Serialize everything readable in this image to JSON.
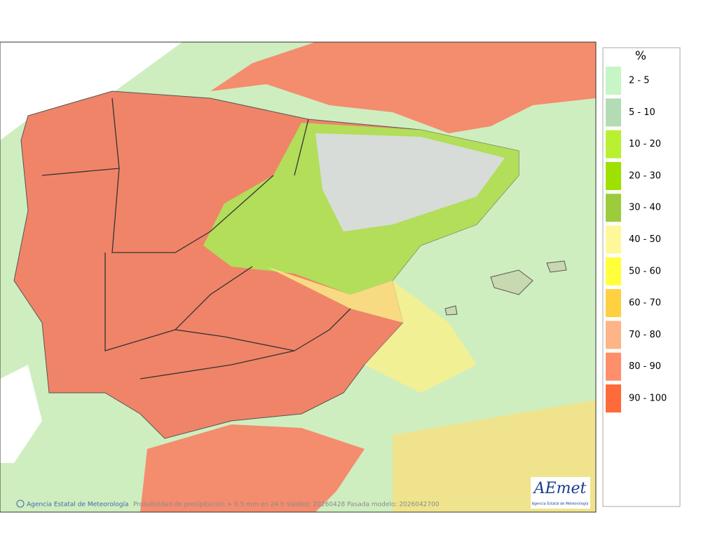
{
  "legend": {
    "title": "%",
    "items": [
      {
        "label": "2 - 5",
        "color": "#c6f5c6"
      },
      {
        "label": "5 - 10",
        "color": "#b4dcb4"
      },
      {
        "label": "10 - 20",
        "color": "#b8f032"
      },
      {
        "label": "20 - 30",
        "color": "#9ee000"
      },
      {
        "label": "30 - 40",
        "color": "#9ccc3c"
      },
      {
        "label": "40 - 50",
        "color": "#fff89a"
      },
      {
        "label": "50 - 60",
        "color": "#ffff3c"
      },
      {
        "label": "60 - 70",
        "color": "#ffd040"
      },
      {
        "label": "70 - 80",
        "color": "#ffb487"
      },
      {
        "label": "80 - 90",
        "color": "#ff8e6a"
      },
      {
        "label": "90 - 100",
        "color": "#ff6a3a"
      }
    ]
  },
  "footer": {
    "credit": "Agencia Estatal de Meteorología",
    "caption": "Probabilidad de precipitación > 0.5 mm en 24 h Validez: 20260428 Pasada modelo: 2026042700"
  },
  "logo": {
    "name": "AEmet",
    "subtitle": "Agencia Estatal de Meteorología"
  }
}
